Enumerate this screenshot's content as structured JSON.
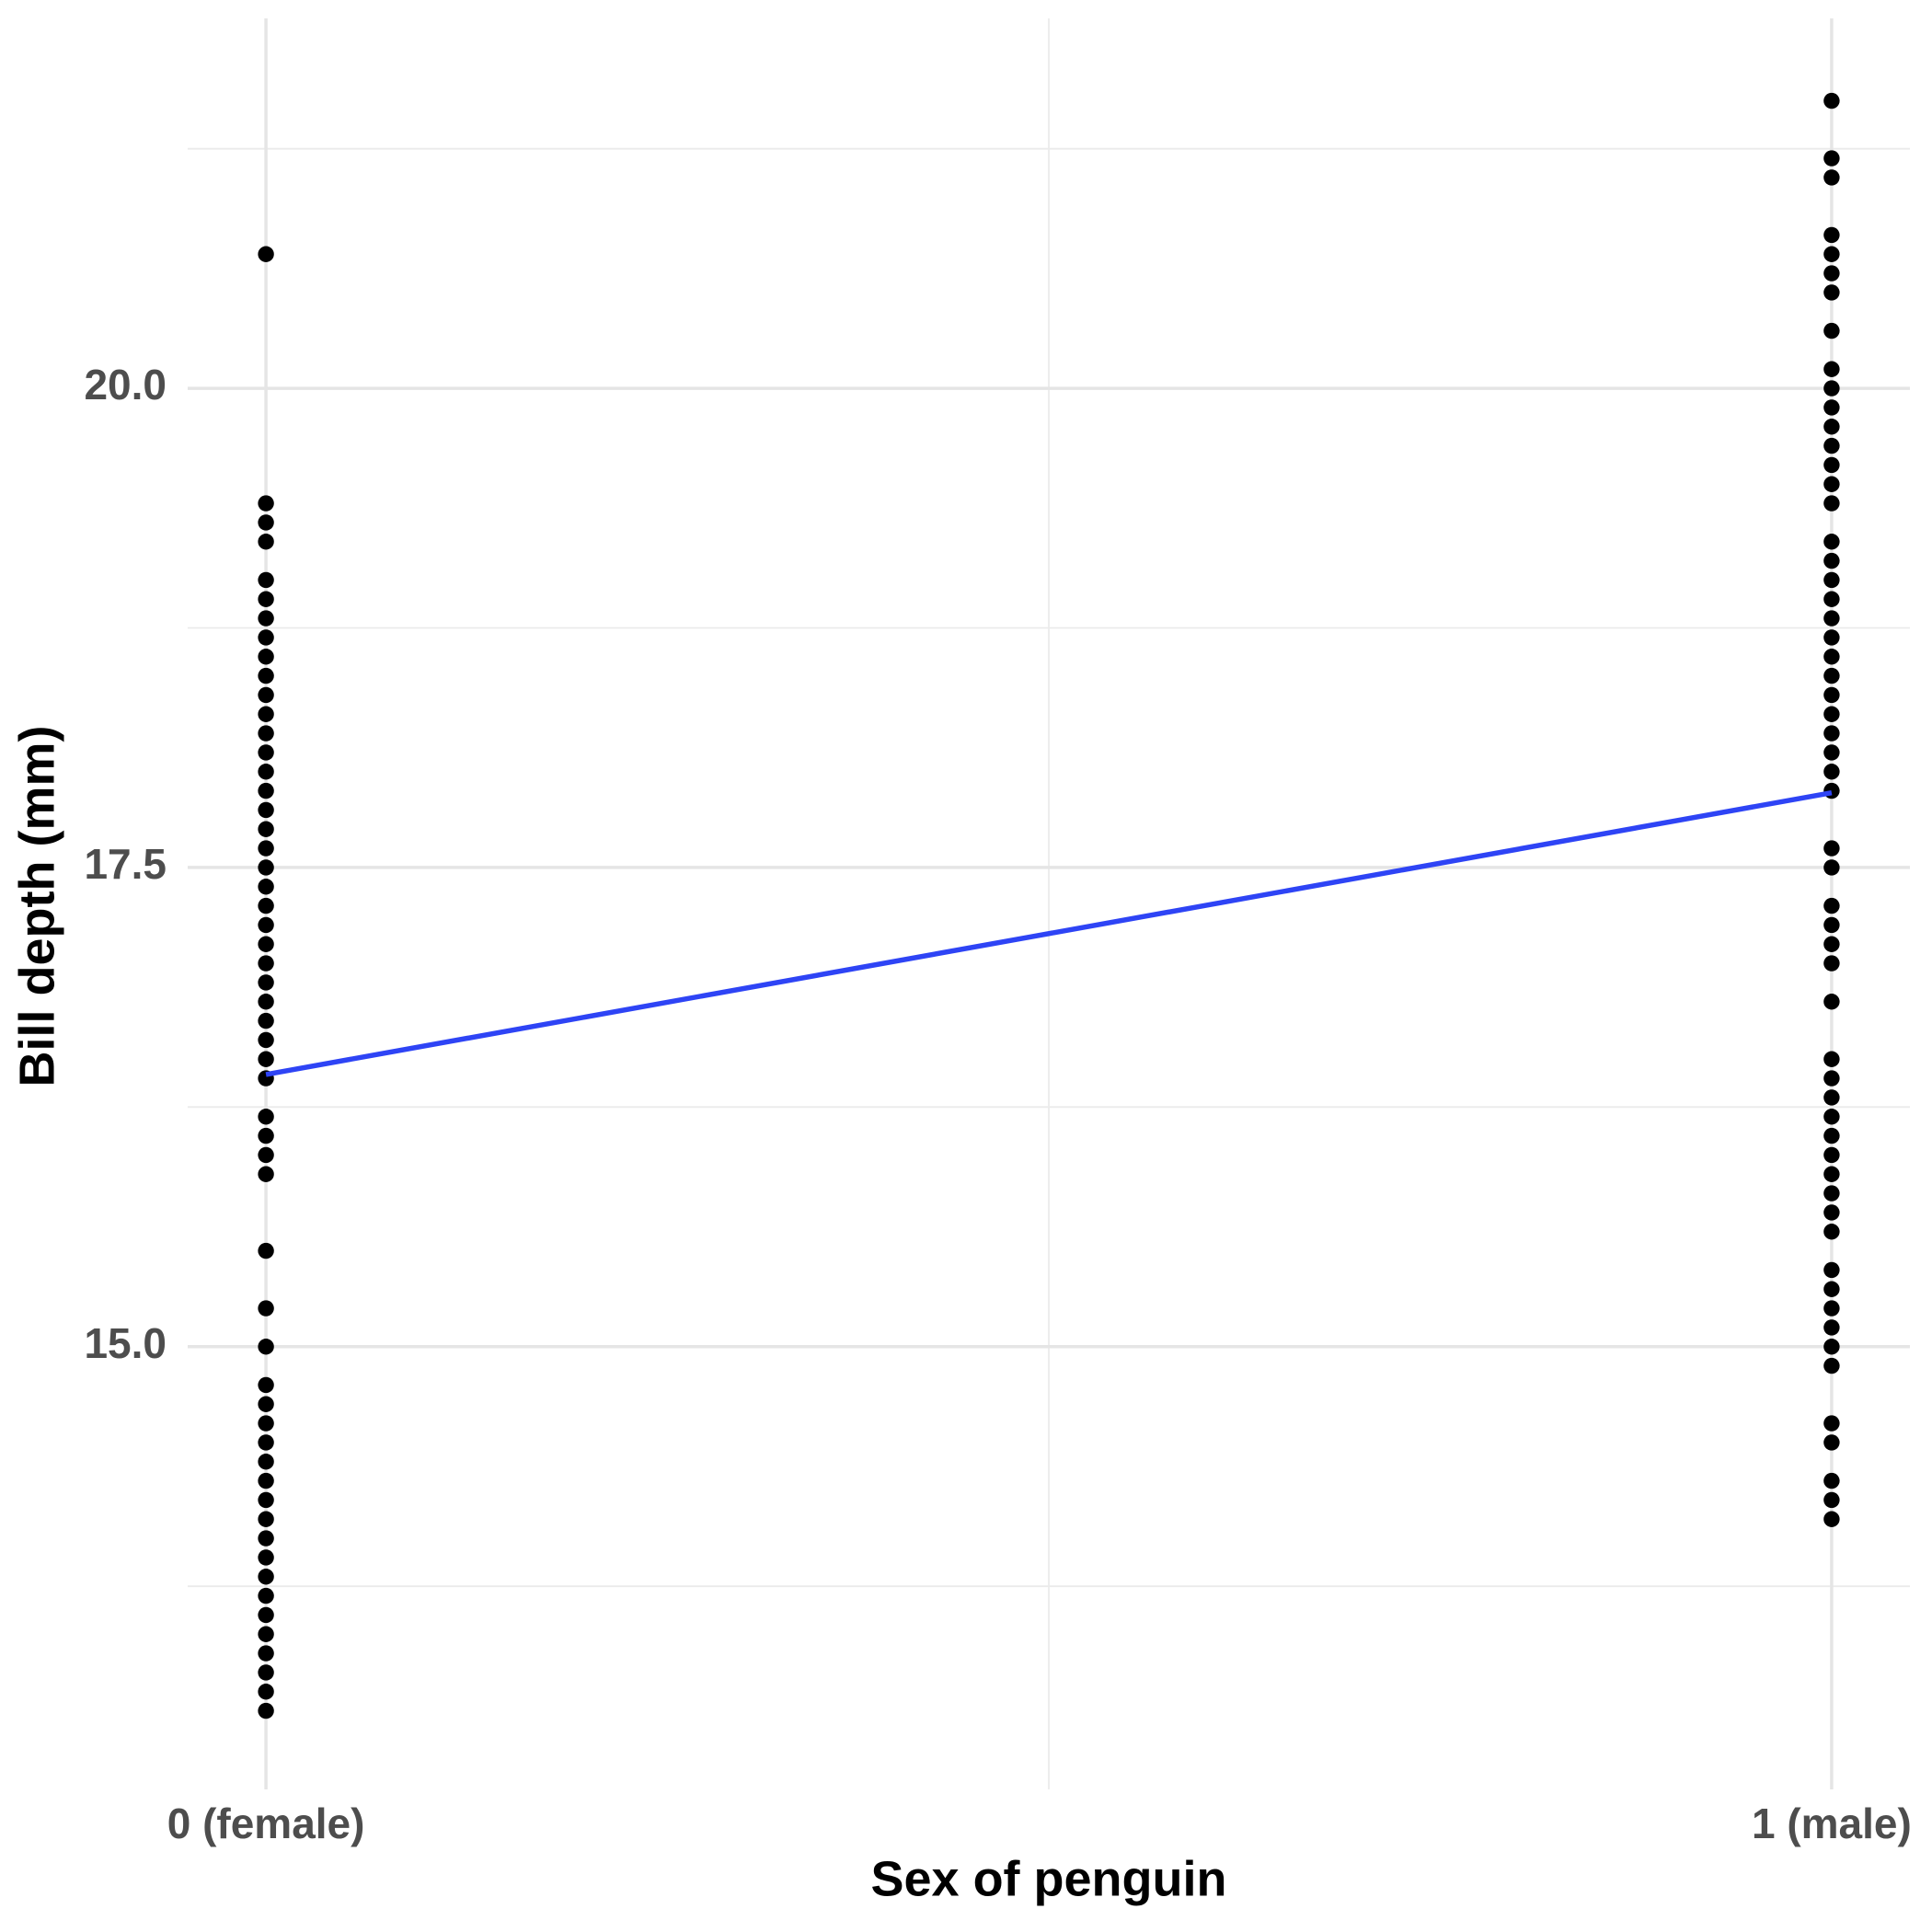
{
  "chart_data": {
    "type": "scatter",
    "xlabel": "Sex of penguin",
    "ylabel": "Bill depth (mm)",
    "xlim": [
      -0.05,
      1.05
    ],
    "ylim": [
      12.69,
      21.93
    ],
    "xticks": [
      {
        "value": 0,
        "label": "0 (female)"
      },
      {
        "value": 1,
        "label": "1 (male)"
      }
    ],
    "yticks": [
      {
        "value": 15,
        "label": "15.0"
      },
      {
        "value": 17.5,
        "label": "17.5"
      },
      {
        "value": 20,
        "label": "20.0"
      }
    ],
    "xminor": [
      0.5
    ],
    "yminor": [
      13.75,
      16.25,
      18.75,
      21.25
    ],
    "grid": true,
    "series": [
      {
        "color": "#000000",
        "x": [
          0,
          0,
          0,
          0,
          0,
          0,
          0,
          0,
          0,
          0,
          0,
          0,
          0,
          0,
          0,
          0,
          0,
          0,
          0,
          0,
          0,
          0,
          0,
          0,
          0,
          0,
          0,
          0,
          0,
          0,
          0,
          0,
          0,
          0,
          0,
          0,
          0,
          0,
          0,
          0,
          0,
          0,
          0,
          0,
          0,
          0,
          0,
          0,
          0,
          0,
          0,
          0,
          0,
          0,
          0,
          0
        ],
        "values": [
          20.7,
          19.4,
          19.3,
          19.2,
          19.0,
          18.9,
          18.8,
          18.7,
          18.6,
          18.5,
          18.4,
          18.3,
          18.2,
          18.1,
          18.0,
          17.9,
          17.8,
          17.7,
          17.6,
          17.5,
          17.4,
          17.3,
          17.2,
          17.1,
          17.0,
          16.9,
          16.8,
          16.7,
          16.6,
          16.5,
          16.4,
          16.2,
          16.1,
          16.0,
          15.9,
          15.5,
          15.2,
          15.0,
          14.8,
          14.7,
          14.6,
          14.5,
          14.4,
          14.3,
          14.2,
          14.1,
          14.0,
          13.9,
          13.8,
          13.7,
          13.6,
          13.5,
          13.4,
          13.3,
          13.2,
          13.1
        ]
      },
      {
        "color": "#000000",
        "x": [
          1,
          1,
          1,
          1,
          1,
          1,
          1,
          1,
          1,
          1,
          1,
          1,
          1,
          1,
          1,
          1,
          1,
          1,
          1,
          1,
          1,
          1,
          1,
          1,
          1,
          1,
          1,
          1,
          1,
          1,
          1,
          1,
          1,
          1,
          1,
          1,
          1,
          1,
          1,
          1,
          1,
          1,
          1,
          1,
          1,
          1,
          1,
          1,
          1,
          1,
          1,
          1,
          1,
          1,
          1,
          1,
          1,
          1
        ],
        "values": [
          21.5,
          21.2,
          21.1,
          20.8,
          20.7,
          20.6,
          20.5,
          20.3,
          20.1,
          20.0,
          19.9,
          19.8,
          19.7,
          19.6,
          19.5,
          19.4,
          19.2,
          19.1,
          19.0,
          18.9,
          18.8,
          18.7,
          18.6,
          18.5,
          18.4,
          18.3,
          18.2,
          18.1,
          18.0,
          17.9,
          17.6,
          17.5,
          17.3,
          17.2,
          17.1,
          17.0,
          16.8,
          16.5,
          16.4,
          16.3,
          16.2,
          16.1,
          16.0,
          15.9,
          15.8,
          15.7,
          15.6,
          15.4,
          15.3,
          15.2,
          15.1,
          15.0,
          14.9,
          14.6,
          14.5,
          14.3,
          14.2,
          14.1
        ]
      },
      {
        "mode": "line",
        "color": "#2e44f5",
        "x": [
          0,
          1
        ],
        "values": [
          16.42,
          17.89
        ]
      }
    ]
  }
}
